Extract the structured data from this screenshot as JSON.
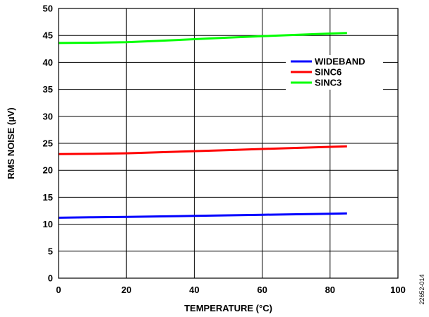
{
  "chart_data": {
    "type": "line",
    "x": [
      0,
      10,
      20,
      30,
      40,
      50,
      60,
      70,
      80,
      85
    ],
    "series": [
      {
        "name": "WIDEBAND",
        "color": "#0000ff",
        "values": [
          11.2,
          11.3,
          11.35,
          11.45,
          11.55,
          11.65,
          11.75,
          11.85,
          11.95,
          12.0
        ]
      },
      {
        "name": "SINC6",
        "color": "#ff0000",
        "values": [
          23.0,
          23.05,
          23.15,
          23.35,
          23.55,
          23.75,
          23.95,
          24.15,
          24.35,
          24.45
        ]
      },
      {
        "name": "SINC3",
        "color": "#00ff00",
        "values": [
          43.6,
          43.65,
          43.75,
          44.0,
          44.3,
          44.6,
          44.85,
          45.1,
          45.35,
          45.45
        ]
      }
    ],
    "xlabel": "TEMPERATURE (°C)",
    "ylabel": "RMS NOISE (µV)",
    "xlim": [
      0,
      100
    ],
    "ylim": [
      0,
      50
    ],
    "xticks": [
      0,
      20,
      40,
      60,
      80,
      100
    ],
    "yticks": [
      0,
      5,
      10,
      15,
      20,
      25,
      30,
      35,
      40,
      45,
      50
    ],
    "grid": true,
    "legend_position": "top-right"
  },
  "figure_id": "22652-014"
}
